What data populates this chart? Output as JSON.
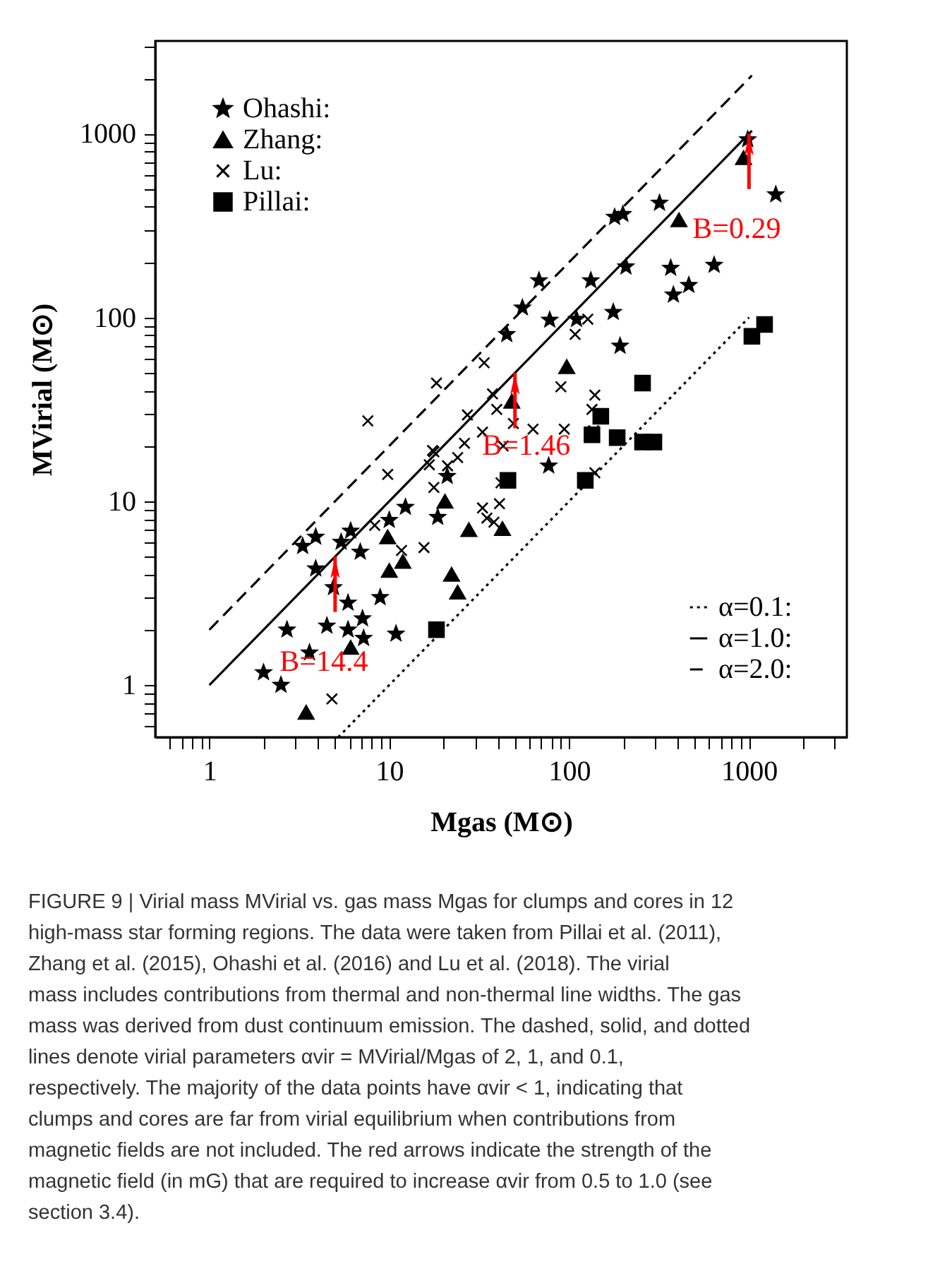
{
  "chart_data": {
    "type": "scatter",
    "xlabel": "Mgas (M⊙)",
    "ylabel": "MVirial (M⊙)",
    "log": "xy",
    "grid": false,
    "legend": "top left",
    "xlim": [
      0.5,
      3500
    ],
    "ylim": [
      0.52,
      3200
    ],
    "xticks": [
      {
        "value": 0.6,
        "label": null
      },
      {
        "value": 0.7,
        "label": null
      },
      {
        "value": 0.8,
        "label": null
      },
      {
        "value": 0.9,
        "label": null
      },
      1,
      {
        "value": 2,
        "label": null
      },
      {
        "value": 3,
        "label": null
      },
      {
        "value": 4,
        "label": null
      },
      {
        "value": 5,
        "label": null
      },
      {
        "value": 6,
        "label": null
      },
      {
        "value": 7,
        "label": null
      },
      {
        "value": 8,
        "label": null
      },
      {
        "value": 9,
        "label": null
      },
      10,
      {
        "value": 20,
        "label": null
      },
      {
        "value": 30,
        "label": null
      },
      {
        "value": 40,
        "label": null
      },
      {
        "value": 50,
        "label": null
      },
      {
        "value": 60,
        "label": null
      },
      {
        "value": 70,
        "label": null
      },
      {
        "value": 80,
        "label": null
      },
      {
        "value": 90,
        "label": null
      },
      100,
      {
        "value": 200,
        "label": null
      },
      {
        "value": 300,
        "label": null
      },
      {
        "value": 400,
        "label": null
      },
      {
        "value": 500,
        "label": null
      },
      {
        "value": 600,
        "label": null
      },
      {
        "value": 700,
        "label": null
      },
      {
        "value": 800,
        "label": null
      },
      {
        "value": 900,
        "label": null
      },
      1000,
      {
        "value": 2000,
        "label": null
      },
      {
        "value": 3000,
        "label": null
      }
    ],
    "yticks": [
      {
        "value": 0.6,
        "label": null
      },
      {
        "value": 0.7,
        "label": null
      },
      {
        "value": 0.8,
        "label": null
      },
      {
        "value": 0.9,
        "label": null
      },
      1,
      {
        "value": 2,
        "label": null
      },
      {
        "value": 3,
        "label": null
      },
      {
        "value": 4,
        "label": null
      },
      {
        "value": 5,
        "label": null
      },
      {
        "value": 6,
        "label": null
      },
      {
        "value": 7,
        "label": null
      },
      {
        "value": 8,
        "label": null
      },
      {
        "value": 9,
        "label": null
      },
      10,
      {
        "value": 20,
        "label": null
      },
      {
        "value": 30,
        "label": null
      },
      {
        "value": 40,
        "label": null
      },
      {
        "value": 50,
        "label": null
      },
      {
        "value": 60,
        "label": null
      },
      {
        "value": 70,
        "label": null
      },
      {
        "value": 80,
        "label": null
      },
      {
        "value": 90,
        "label": null
      },
      100,
      {
        "value": 200,
        "label": null
      },
      {
        "value": 300,
        "label": null
      },
      {
        "value": 400,
        "label": null
      },
      {
        "value": 500,
        "label": null
      },
      {
        "value": 600,
        "label": null
      },
      {
        "value": 700,
        "label": null
      },
      {
        "value": 800,
        "label": null
      },
      {
        "value": 900,
        "label": null
      },
      1000,
      {
        "value": 2000,
        "label": null
      },
      {
        "value": 3000,
        "label": null
      }
    ],
    "series": [
      {
        "name": "Ohashi:",
        "marker": "star",
        "color": "#000000",
        "x": [
          12.3,
          10,
          6.1,
          5.4,
          3.9,
          3.3,
          6.9,
          3.9,
          4.9,
          5.9,
          8.9,
          7.1,
          2.7,
          4.5,
          5.9,
          7.2,
          10.9,
          3.6,
          2,
          2.5,
          68,
          132,
          207,
          55,
          78,
          110,
          176,
          45,
          192,
          21,
          77,
          18.6,
          984,
          1409,
          179,
          199,
          318,
          367,
          640,
          380,
          463
        ],
        "values": [
          9.3,
          7.9,
          6.9,
          6,
          6.4,
          5.7,
          5.3,
          4.3,
          3.4,
          2.8,
          3,
          2.3,
          2,
          2.1,
          2,
          1.8,
          1.9,
          1.5,
          1.17,
          1,
          159,
          159,
          189,
          113,
          97,
          98,
          107,
          81,
          70,
          13.7,
          15.6,
          8.2,
          931,
          467,
          352,
          365,
          420,
          186,
          193,
          133,
          150
        ]
      },
      {
        "name": "Zhang:",
        "marker": "triangle",
        "color": "#000000",
        "x": [
          9.8,
          10,
          11.9,
          6.1,
          3.45,
          97,
          48,
          20.4,
          27.7,
          42.6,
          933,
          408,
          22.2,
          24
        ],
        "values": [
          6.4,
          4.2,
          4.7,
          1.6,
          0.71,
          54,
          35,
          10,
          7,
          7.1,
          740,
          340,
          4,
          3.2
        ]
      },
      {
        "name": "Lu:",
        "marker": "cross",
        "color": "#000000",
        "x": [
          18.3,
          7.6,
          9.8,
          17.4,
          16.7,
          17.7,
          8.3,
          11.7,
          15.6,
          4.8,
          33.7,
          90,
          108,
          127,
          139,
          134,
          37.5,
          39.6,
          27.2,
          49,
          63,
          33,
          94,
          137,
          26.2,
          43,
          17.7,
          24,
          21.1,
          41.8,
          139,
          33,
          41,
          34.9,
          38.2
        ],
        "values": [
          44,
          27.4,
          14,
          18.9,
          15.8,
          11.9,
          7.4,
          5.4,
          5.6,
          0.84,
          56.7,
          42,
          81,
          98,
          37.8,
          31.6,
          38.4,
          31.6,
          29.5,
          26.5,
          24.7,
          23.8,
          24.7,
          24.2,
          20.7,
          20,
          18.6,
          17.3,
          15.6,
          12.6,
          14.3,
          9.2,
          9.7,
          8.1,
          7.7
        ]
      },
      {
        "name": "Pillai:",
        "marker": "square",
        "color": "#000000",
        "x": [
          18.3,
          256,
          150,
          134,
          185,
          256,
          296,
          45.7,
          123,
          1038,
          1221
        ],
        "values": [
          2,
          44,
          29,
          23,
          22.2,
          21,
          21,
          13,
          13,
          79,
          91.6
        ]
      },
      {
        "name": "α=0.1:",
        "type": "line",
        "line_style": "dotted",
        "color": "#000000",
        "x": [
          5.2,
          1000
        ],
        "values": [
          0.52,
          100
        ]
      },
      {
        "name": "α=1.0:",
        "type": "line",
        "line_style": "solid",
        "color": "#000000",
        "x": [
          1,
          1038
        ],
        "values": [
          1,
          1038
        ]
      },
      {
        "name": "α=2.0:",
        "type": "line",
        "line_style": "dashed",
        "color": "#000000",
        "x": [
          1,
          1038
        ],
        "values": [
          2,
          2076
        ]
      }
    ],
    "annotations": [
      {
        "text": "B=14.4",
        "x": 5,
        "y": 5
      },
      {
        "text": "B=1.46",
        "x": 50,
        "y": 50
      },
      {
        "text": "B=0.29",
        "x": 1000,
        "y": 1000
      },
      "FIGURE 9 | Virial mass MVirial vs. gas mass Mgas for clumps and cores in 12 high-mass star forming regions. The data were taken from Pillai et al. (2011), Zhang et al. (2015), Ohashi et al. (2016) and Lu et al. (2018). The virial mass includes contributions from thermal and non-thermal line widths. The gas mass was derived from dust continuum emission. The dashed, solid, and dotted lines denote virial parameters αvir = MVirial/Mgas of 2, 1, and 0.1, respectively. The majority of the data points have αvir < 1, indicating that clumps and cores are far from virial equilibrium when contributions from magnetic fields are not included. The red arrows indicate the strength of the magnetic field (in mG) that are required to increase αvir from 0.5 to 1.0 (see section 3.4)."
    ]
  }
}
